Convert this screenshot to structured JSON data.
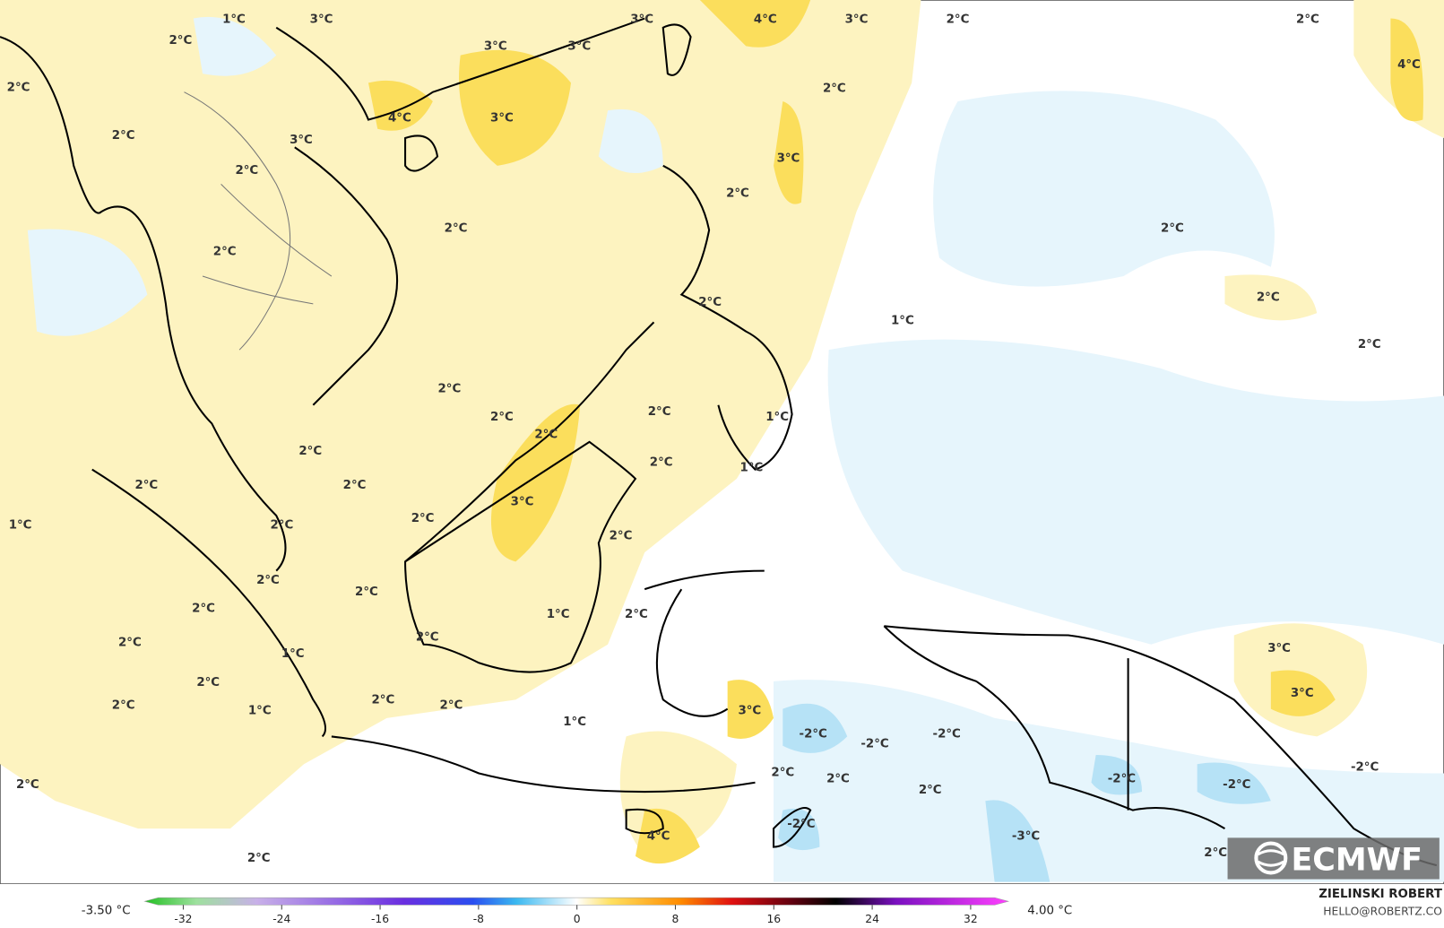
{
  "map": {
    "contour_labels": [
      "1°C",
      "3°C",
      "3°C",
      "4°C",
      "3°C",
      "2°C",
      "2°C",
      "2°C",
      "3°C",
      "3°C",
      "4°C",
      "2°C",
      "2°C",
      "4°C",
      "3°C",
      "2°C",
      "3°C",
      "3°C",
      "2°C",
      "2°C",
      "2°C",
      "2°C",
      "2°C",
      "2°C",
      "2°C",
      "1°C",
      "2°C",
      "2°C",
      "2°C",
      "2°C",
      "1°C",
      "2°C",
      "2°C",
      "2°C",
      "1°C",
      "2°C",
      "2°C",
      "3°C",
      "2°C",
      "1°C",
      "2°C",
      "2°C",
      "2°C",
      "2°C",
      "2°C",
      "1°C",
      "2°C",
      "2°C",
      "2°C",
      "1°C",
      "3°C",
      "2°C",
      "3°C",
      "2°C",
      "2°C",
      "2°C",
      "1°C",
      "3°C",
      "1°C",
      "-2°C",
      "-2°C",
      "-2°C",
      "-2°C",
      "2°C",
      "2°C",
      "-2°C",
      "-2°C",
      "2°C",
      "2°C",
      "-2°C",
      "4°C",
      "-3°C",
      "2°C",
      "2°C"
    ]
  },
  "legend": {
    "min_label": "-3.50 °C",
    "max_label": "4.00 °C",
    "ticks": [
      -32,
      -24,
      -16,
      -8,
      0,
      8,
      16,
      24,
      32
    ]
  },
  "credit": {
    "name": "ZIELINSKI ROBERT",
    "email": "HELLO@ROBERTZ.CO"
  },
  "logo": "ECMWF"
}
